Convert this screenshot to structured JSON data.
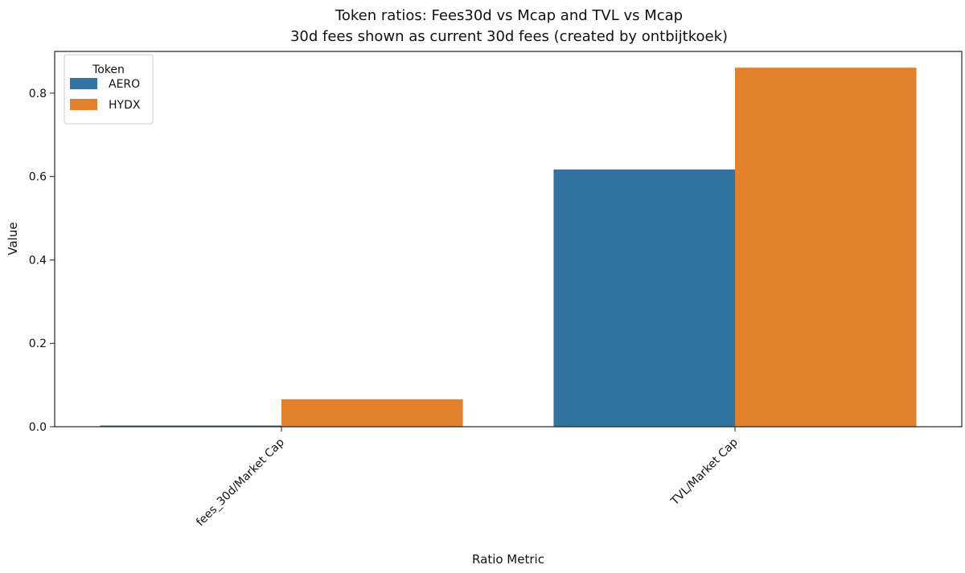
{
  "chart_data": {
    "type": "bar",
    "title": "Token ratios: Fees30d vs Mcap and TVL vs Mcap",
    "subtitle": "30d fees shown as current 30d fees (created by ontbijtkoek)",
    "xlabel": "Ratio Metric",
    "ylabel": "Value",
    "categories": [
      "fees_30d/Market Cap",
      "TVL/Market Cap"
    ],
    "series": [
      {
        "name": "AERO",
        "color": "#3274a1",
        "values": [
          0.003,
          0.617
        ]
      },
      {
        "name": "HYDX",
        "color": "#e1812c",
        "values": [
          0.066,
          0.861
        ]
      }
    ],
    "ylim": [
      0,
      0.9
    ],
    "yticks": [
      0.0,
      0.2,
      0.4,
      0.6,
      0.8
    ],
    "ytick_labels": [
      "0.0",
      "0.2",
      "0.4",
      "0.6",
      "0.8"
    ],
    "legend": {
      "title": "Token",
      "position": "top-left"
    },
    "grid": false
  }
}
